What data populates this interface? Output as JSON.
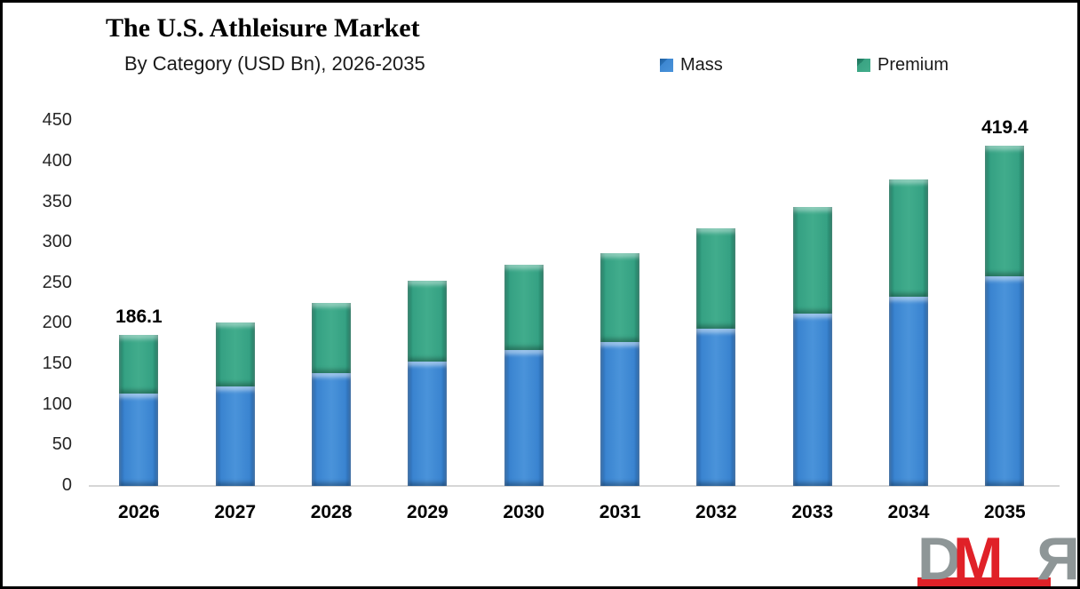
{
  "header": {
    "title": "The U.S. Athleisure Market",
    "subtitle": "By Category (USD Bn), 2026-2035"
  },
  "legend": {
    "mass_label": "Mass",
    "premium_label": "Premium"
  },
  "chart_data": {
    "type": "bar",
    "stacked": true,
    "title": "The U.S. Athleisure Market",
    "subtitle": "By Category (USD Bn), 2026-2035",
    "unit": "USD Bn",
    "categories": [
      "2026",
      "2027",
      "2028",
      "2029",
      "2030",
      "2031",
      "2032",
      "2033",
      "2034",
      "2035"
    ],
    "series": [
      {
        "name": "Mass",
        "color": "#3380CB",
        "values": [
          113.9,
          123.2,
          138.8,
          153.4,
          168.0,
          177.8,
          194.3,
          212.6,
          233.7,
          258.2
        ]
      },
      {
        "name": "Premium",
        "color": "#35A183",
        "values": [
          72.2,
          78.3,
          86.6,
          99.4,
          104.8,
          109.6,
          123.1,
          131.5,
          144.3,
          161.2
        ]
      }
    ],
    "totals": [
      186.1,
      201.5,
      225.4,
      252.8,
      272.8,
      287.4,
      317.4,
      344.1,
      378.0,
      419.4
    ],
    "data_labels": [
      "186.1",
      "",
      "",
      "",
      "",
      "",
      "",
      "",
      "",
      "419.4"
    ],
    "y_axis": {
      "min": 0,
      "max": 450,
      "step": 50,
      "ticks": [
        "0",
        "50",
        "100",
        "150",
        "200",
        "250",
        "300",
        "350",
        "400",
        "450"
      ]
    },
    "xlabel": "",
    "ylabel": "",
    "grid": false,
    "legend_position": "top"
  },
  "colors": {
    "mass": "#3380CB",
    "premium": "#35A183",
    "axis": "#D6D6D6",
    "logo_gray": "#8E9697",
    "logo_red": "#E02128"
  },
  "logo": {
    "letter_d": "D",
    "letter_m": "M",
    "letter_r": "R"
  }
}
